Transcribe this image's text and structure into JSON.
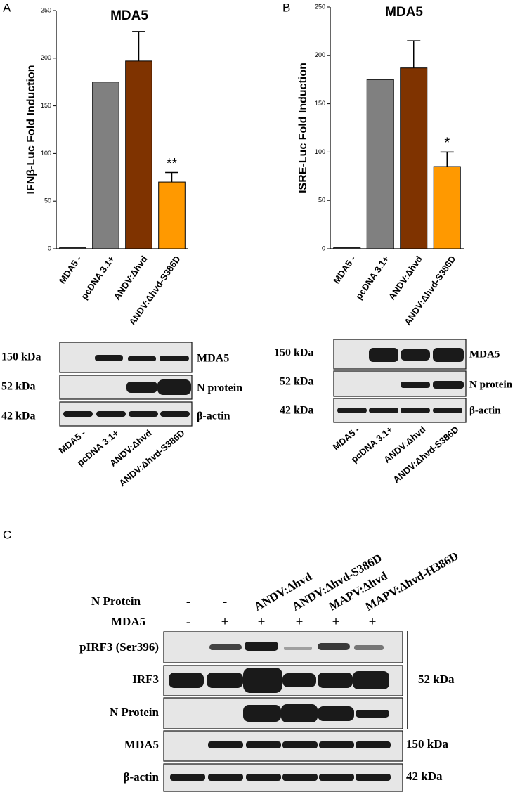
{
  "panel_labels": [
    "A",
    "B",
    "C"
  ],
  "chart_data": [
    {
      "type": "bar",
      "title": "MDA5",
      "y_label": "IFNβ-Luc  Fold Induction",
      "categories": [
        "MDA5 -",
        "pcDNA 3.1+",
        "ANDV:Δhvd",
        "ANDV:Δhvd-S386D"
      ],
      "values": [
        1,
        175,
        197,
        70
      ],
      "errors": [
        null,
        null,
        31,
        10
      ],
      "colors": [
        "#808080",
        "#808080",
        "#7f3300",
        "#ff9900"
      ],
      "annotations": [
        null,
        null,
        null,
        "**"
      ],
      "ylim": [
        0,
        250
      ],
      "yticks": [
        0,
        50,
        100,
        150,
        200,
        250
      ]
    },
    {
      "type": "bar",
      "title": "MDA5",
      "y_label": "ISRE-Luc Fold Induction",
      "categories": [
        "MDA5 -",
        "pcDNA 3.1+",
        "ANDV:Δhvd",
        "ANDV:Δhvd-S386D"
      ],
      "values": [
        1,
        175,
        187,
        85
      ],
      "errors": [
        null,
        null,
        28,
        15
      ],
      "colors": [
        "#808080",
        "#808080",
        "#7f3300",
        "#ff9900"
      ],
      "annotations": [
        null,
        null,
        null,
        "*"
      ],
      "ylim": [
        0,
        250
      ],
      "yticks": [
        0,
        50,
        100,
        150,
        200,
        250
      ]
    }
  ],
  "blot_a": {
    "rows": [
      {
        "size": "150 kDa",
        "protein": "MDA5"
      },
      {
        "size": "52 kDa",
        "protein": "N protein"
      },
      {
        "size": "42 kDa",
        "protein": "β-actin"
      }
    ]
  },
  "blot_b": {
    "rows": [
      {
        "size": "150 kDa",
        "protein": "MDA5"
      },
      {
        "size": "52 kDa",
        "protein": "N protein"
      },
      {
        "size": "42 kDa",
        "protein": "β-actin"
      }
    ]
  },
  "blot_c": {
    "conditions": [
      {
        "label": "N Protein",
        "lanes": [
          "-",
          "-",
          "ANDV:Δhvd",
          "ANDV:Δhvd-S386D",
          "MAPV:Δhvd",
          "MAPV:Δhvd-H386D"
        ]
      },
      {
        "label": "MDA5",
        "lanes": [
          "-",
          "+",
          "+",
          "+",
          "+",
          "+"
        ]
      }
    ],
    "rows": [
      "pIRF3 (Ser396)",
      "IRF3",
      "N Protein",
      "MDA5",
      "β-actin"
    ],
    "sizes": [
      "52 kDa",
      "150 kDa",
      "42 kDa"
    ]
  }
}
